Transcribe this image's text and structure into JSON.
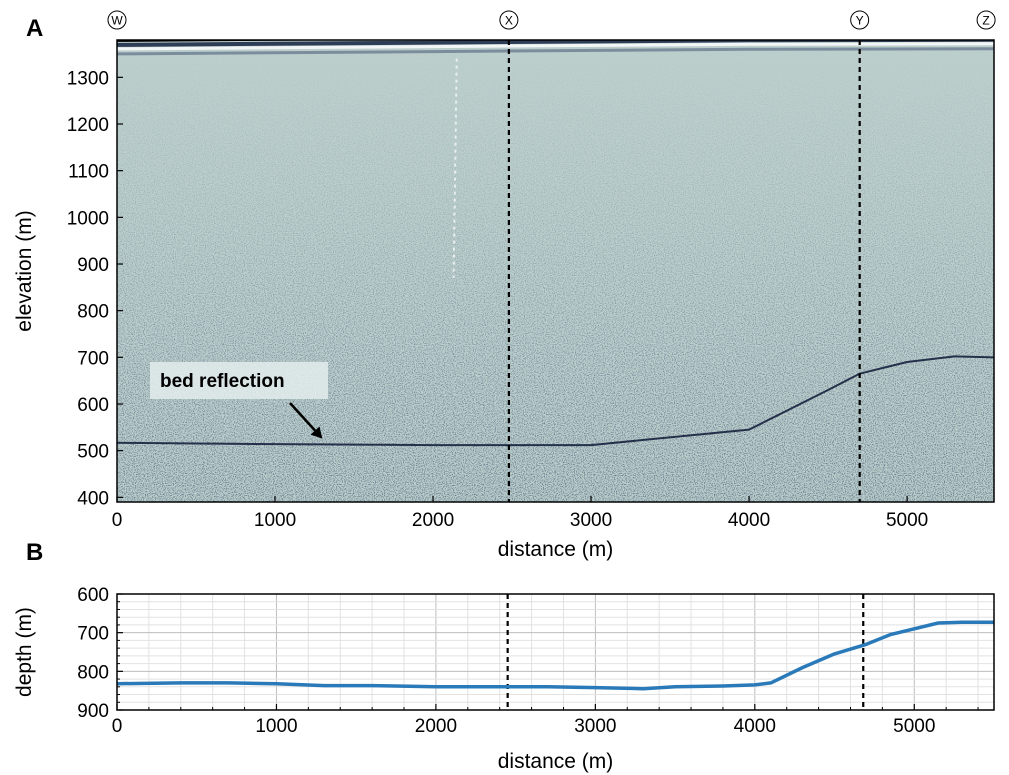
{
  "panel_a": {
    "letter": "A",
    "profile_markers": [
      "W",
      "X",
      "Y",
      "Z"
    ],
    "annotation": "bed reflection"
  },
  "panel_b": {
    "letter": "B"
  },
  "colors": {
    "radargram_base": "#bccfcd",
    "radargram_dark": "#1e2a3a",
    "depth_line": "#2a7ab9",
    "grid": "#cfcfcf",
    "marker_line": "#000000"
  },
  "chart_data": [
    {
      "type": "heatmap",
      "description_type": "radargram",
      "xlabel": "distance (m)",
      "ylabel": "elevation (m)",
      "xlim": [
        0,
        5550
      ],
      "ylim": [
        390,
        1380
      ],
      "xticks": [
        0,
        1000,
        2000,
        3000,
        4000,
        5000
      ],
      "yticks": [
        400,
        500,
        600,
        700,
        800,
        900,
        1000,
        1100,
        1200,
        1300
      ],
      "vertical_markers": [
        {
          "label": "X",
          "x": 2480
        },
        {
          "label": "Y",
          "x": 4700
        }
      ],
      "marker_labels_positions": [
        {
          "label": "W",
          "x": 0
        },
        {
          "label": "X",
          "x": 2480
        },
        {
          "label": "Y",
          "x": 4700
        },
        {
          "label": "Z",
          "x": 5500
        }
      ],
      "surface_elevation": [
        {
          "x": 0,
          "y": 1363
        },
        {
          "x": 2000,
          "y": 1368
        },
        {
          "x": 4000,
          "y": 1373
        },
        {
          "x": 5550,
          "y": 1374
        }
      ],
      "bed_reflection": [
        {
          "x": 0,
          "y": 517
        },
        {
          "x": 1000,
          "y": 514
        },
        {
          "x": 2000,
          "y": 512
        },
        {
          "x": 3000,
          "y": 512
        },
        {
          "x": 4000,
          "y": 545
        },
        {
          "x": 4500,
          "y": 630
        },
        {
          "x": 4700,
          "y": 665
        },
        {
          "x": 5000,
          "y": 690
        },
        {
          "x": 5300,
          "y": 702
        },
        {
          "x": 5550,
          "y": 700
        }
      ],
      "annotation_point": {
        "x": 1300,
        "y": 515
      }
    },
    {
      "type": "line",
      "xlabel": "distance (m)",
      "ylabel": "depth (m)",
      "xlim": [
        0,
        5500
      ],
      "ylim": [
        900,
        600
      ],
      "inverted_y": true,
      "xticks": [
        0,
        1000,
        2000,
        3000,
        4000,
        5000
      ],
      "yticks": [
        600,
        700,
        800,
        900
      ],
      "grid": true,
      "vertical_markers": [
        2450,
        4680
      ],
      "series": [
        {
          "x": [
            0,
            400,
            700,
            1000,
            1300,
            1600,
            2000,
            2400,
            2700,
            3000,
            3300,
            3500,
            3800,
            4000,
            4100,
            4300,
            4500,
            4700,
            4850,
            5000,
            5150,
            5300,
            5500
          ],
          "y": [
            832,
            830,
            830,
            832,
            837,
            837,
            840,
            840,
            840,
            842,
            845,
            840,
            838,
            835,
            830,
            790,
            755,
            730,
            705,
            690,
            675,
            673,
            673
          ]
        }
      ]
    }
  ]
}
